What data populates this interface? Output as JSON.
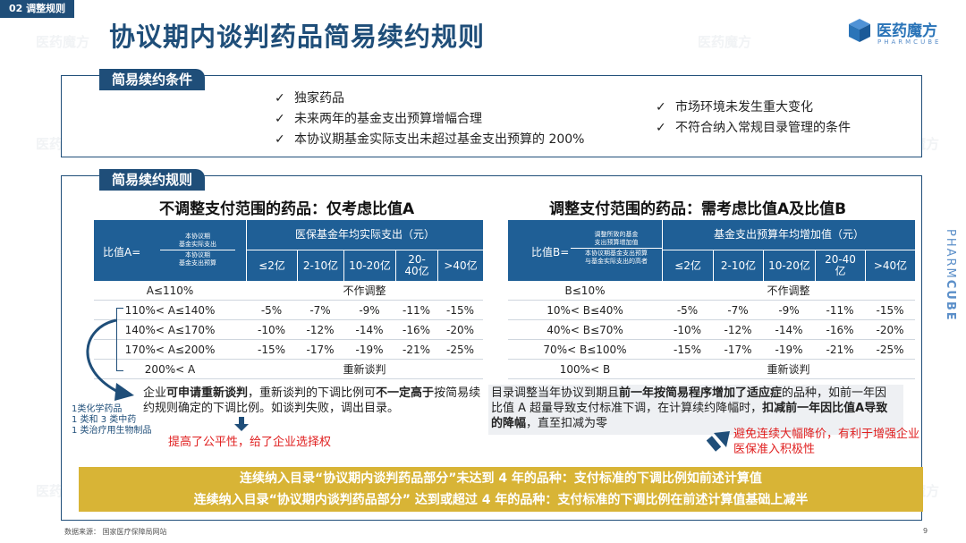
{
  "section_tag": "02 调整规则",
  "title": "协议期内谈判药品简易续约规则",
  "logo": {
    "cn": "医药魔方",
    "en": "PHARMCUBE"
  },
  "side_brand": {
    "part1": "PHARM",
    "part2": "CUBE"
  },
  "watermark": "医药魔方",
  "conditions": {
    "tag": "简易续约条件",
    "left": [
      "独家药品",
      "未来两年的基金支出预算增幅合理",
      "本协议期基金实际支出未超过基金支出预算的 200%"
    ],
    "right": [
      "市场环境未发生重大变化",
      "不符合纳入常规目录管理的条件"
    ],
    "check_icon": "✓"
  },
  "rules": {
    "tag": "简易续约规则",
    "left_table": {
      "subtitle": "不调整支付范围的药品：仅考虑比值A",
      "ratio_label": "比值A=",
      "frac_num": [
        "本协议期",
        "基金实际支出"
      ],
      "frac_den": [
        "本协议期",
        "基金支出预算"
      ],
      "group_header": "医保基金年均实际支出（元）",
      "columns": [
        "≤2亿",
        "2-10亿",
        "10-20亿",
        "20-40亿",
        ">40亿"
      ],
      "rows": [
        {
          "label": "A≤110%",
          "merged": "不作调整"
        },
        {
          "label": "110%< A≤140%",
          "values": [
            "-5%",
            "-7%",
            "-9%",
            "-11%",
            "-15%"
          ]
        },
        {
          "label": "140%< A≤170%",
          "values": [
            "-10%",
            "-12%",
            "-14%",
            "-16%",
            "-20%"
          ]
        },
        {
          "label": "170%< A≤200%",
          "values": [
            "-15%",
            "-17%",
            "-19%",
            "-21%",
            "-25%"
          ]
        },
        {
          "label": "200%< A",
          "merged": "重新谈判"
        }
      ]
    },
    "right_table": {
      "subtitle": "调整支付范围的药品：需考虑比值A及比值B",
      "ratio_label": "比值B=",
      "frac_num": [
        "调整所致的基金",
        "支出预算增加值"
      ],
      "frac_den": [
        "本协议期基金支出预算",
        "与基金实际支出的高者"
      ],
      "group_header": "基金支出预算年均增加值（元）",
      "columns": [
        "≤2亿",
        "2-10亿",
        "10-20亿",
        "20-40亿",
        ">40亿"
      ],
      "rows": [
        {
          "label": "B≤10%",
          "merged": "不作调整"
        },
        {
          "label": "10%< B≤40%",
          "values": [
            "-5%",
            "-7%",
            "-9%",
            "-11%",
            "-15%"
          ]
        },
        {
          "label": "40%< B≤70%",
          "values": [
            "-10%",
            "-12%",
            "-14%",
            "-16%",
            "-20%"
          ]
        },
        {
          "label": "70%< B≤100%",
          "values": [
            "-15%",
            "-17%",
            "-19%",
            "-21%",
            "-25%"
          ]
        },
        {
          "label": "100%< B",
          "merged": "重新谈判"
        }
      ]
    },
    "left_note": {
      "p1": "企业",
      "b1": "可申请重新谈判",
      "p2": "，重新谈判的下调比例可",
      "b2": "不一定高于",
      "p3": "按简易续约规则确定的下调比例。如谈判失败，调出目录。"
    },
    "left_conclusion": "提高了公平性，给了企业选择权",
    "drug_types": [
      "1类化学药品",
      "1 类和 3 类中药",
      "1 类治疗用生物制品"
    ],
    "right_note": {
      "p1": "目录调整当年协议到期且",
      "b1": "前一年按简易程序增加了适应症",
      "p2": "的品种，如前一年因比值 A 超量导致支付标准下调，在计算续约降幅时，",
      "b2": "扣减前一年因比值A导致的降幅",
      "p3": "，直至扣减为零"
    },
    "right_conclusion": "避免连续大幅降价，有利于增强企业医保准入积极性"
  },
  "banner": {
    "line1": "连续纳入目录“协议期内谈判药品部分”未达到 4 年的品种：支付标准的下调比例如前述计算值",
    "line2": "连续纳入目录“协议期内谈判药品部分” 达到或超过 4 年的品种：支付标准的下调比例在前述计算值基础上减半"
  },
  "footer": {
    "source": "数据来源：  国家医疗保障局网站",
    "page": "9"
  },
  "colors": {
    "navy": "#1f4e79",
    "header_blue": "#1f5f96",
    "gold": "#d8b436",
    "red": "#e02020"
  }
}
